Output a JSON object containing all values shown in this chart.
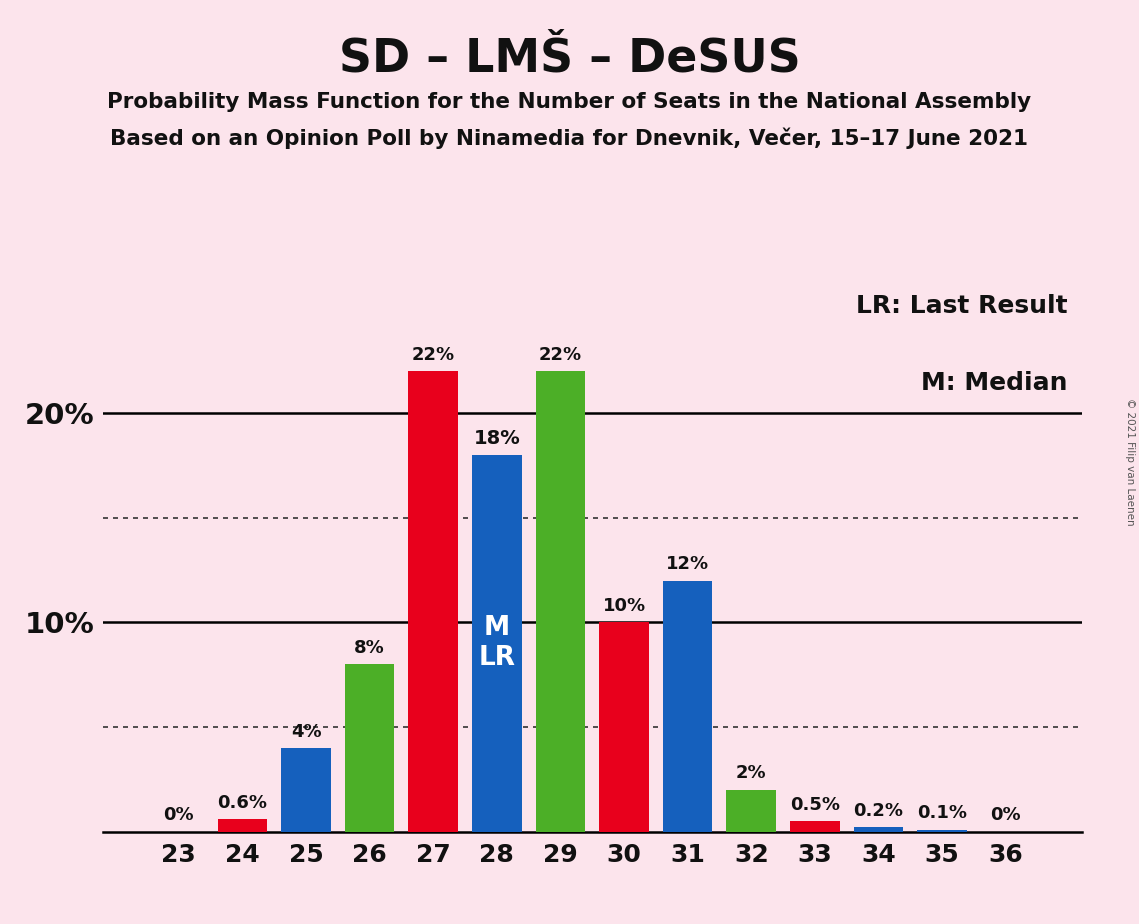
{
  "title": "SD – LMŠ – DeSUS",
  "subtitle1": "Probability Mass Function for the Number of Seats in the National Assembly",
  "subtitle2": "Based on an Opinion Poll by Ninamedia for Dnevnik, Večer, 15–17 June 2021",
  "copyright": "© 2021 Filip van Laenen",
  "legend_lr": "LR: Last Result",
  "legend_m": "M: Median",
  "seats": [
    23,
    24,
    25,
    26,
    27,
    28,
    29,
    30,
    31,
    32,
    33,
    34,
    35,
    36
  ],
  "values": [
    0.0,
    0.6,
    4.0,
    8.0,
    22.0,
    18.0,
    22.0,
    10.0,
    12.0,
    2.0,
    0.5,
    0.2,
    0.1,
    0.0
  ],
  "colors": [
    "#e8001c",
    "#e8001c",
    "#1560bd",
    "#4caf27",
    "#e8001c",
    "#1560bd",
    "#4caf27",
    "#e8001c",
    "#1560bd",
    "#4caf27",
    "#e8001c",
    "#1560bd",
    "#1560bd",
    "#e8001c"
  ],
  "labels": [
    "0%",
    "0.6%",
    "4%",
    "8%",
    "22%",
    "18%",
    "22%",
    "10%",
    "12%",
    "2%",
    "0.5%",
    "0.2%",
    "0.1%",
    "0%"
  ],
  "median_seat": 28,
  "lr_seat": 28,
  "background_color": "#fce4ec",
  "dotted_lines": [
    5.0,
    15.0
  ],
  "solid_lines": [
    10.0,
    20.0
  ],
  "bar_width": 0.78,
  "xlim": [
    21.8,
    37.2
  ],
  "ylim": [
    0,
    26.5
  ]
}
